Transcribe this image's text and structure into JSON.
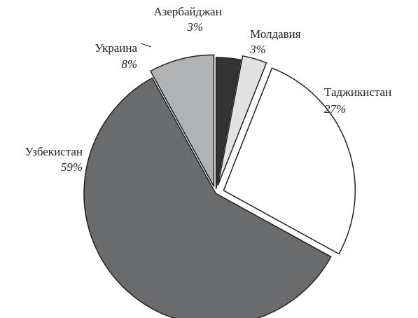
{
  "chart_data": {
    "type": "pie",
    "categories": [
      "Азербайджан",
      "Молдавия",
      "Таджикистан",
      "Узбекистан",
      "Украина"
    ],
    "values": [
      3,
      3,
      27,
      59,
      8
    ],
    "value_labels": [
      "3%",
      "3%",
      "27%",
      "59%",
      "8%"
    ],
    "colors": [
      "#333333",
      "#e2e2e2",
      "#ffffff",
      "#6a6b6c",
      "#b1b2b3"
    ]
  }
}
